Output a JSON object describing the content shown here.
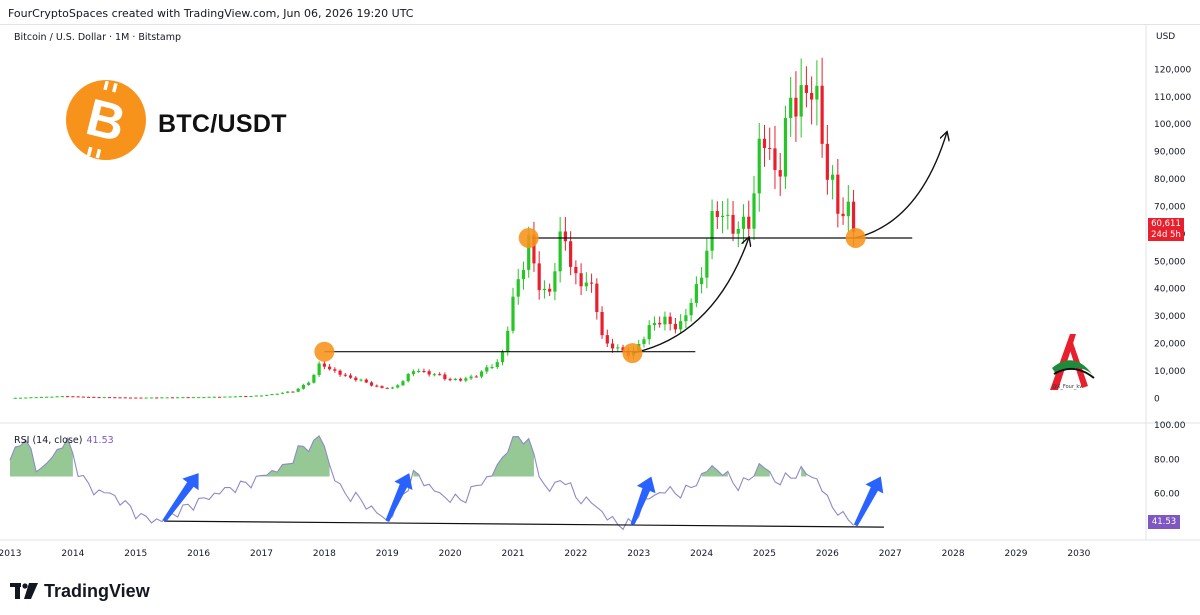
{
  "header": {
    "credit": "FourCryptoSpaces created with TradingView.com, Jun 06, 2026 19:20 UTC"
  },
  "symbol_line": "Bitcoin / U.S. Dollar · 1M · Bitstamp",
  "badge_title": "BTC/USDT",
  "price_tag": {
    "price": "60,611",
    "countdown": "24d 5h"
  },
  "rsi": {
    "label": "RSI (14, close)",
    "value": "41.53",
    "tag": "41.53"
  },
  "footer": {
    "brand": "TradingView"
  },
  "watermark": {
    "handle": "@X_Four_kv"
  },
  "colors": {
    "up": "#26c626",
    "down": "#e8202d",
    "rsi_line": "#8f89c9",
    "rsi_fill": "#3f9b3f",
    "orange": "#f7931a",
    "arrow_blue": "#2962ff"
  },
  "chart_data": [
    {
      "type": "candlestick",
      "title": "Bitcoin / U.S. Dollar · 1M · Bitstamp",
      "ylabel": "USD",
      "ylim": [
        -5000,
        130000
      ],
      "y_ticks": [
        0,
        10000,
        20000,
        30000,
        40000,
        50000,
        60000,
        70000,
        80000,
        90000,
        100000,
        110000,
        120000
      ],
      "y_tick_labels": [
        "0",
        "10,000",
        "20,000",
        "30,000",
        "40,000",
        "50,000",
        "60,000",
        "70,000",
        "80,000",
        "90,000",
        "100,000",
        "110,000",
        "120,000"
      ],
      "x_range": [
        2013.0,
        2030.4
      ],
      "x_ticks": [
        2013,
        2014,
        2015,
        2016,
        2017,
        2018,
        2019,
        2020,
        2021,
        2022,
        2023,
        2024,
        2025,
        2026,
        2027,
        2028,
        2029,
        2030
      ],
      "x_tick_labels": [
        "2013",
        "2014",
        "2015",
        "2016",
        "2017",
        "2018",
        "2019",
        "2020",
        "2021",
        "2022",
        "2023",
        "2024",
        "2025",
        "2026",
        "2027",
        "2028",
        "2029",
        "2030"
      ],
      "last_price": 60611,
      "ohlc_anchors": [
        [
          2013.0,
          100
        ],
        [
          2013.9,
          800
        ],
        [
          2014.2,
          500
        ],
        [
          2015.0,
          250
        ],
        [
          2016.0,
          430
        ],
        [
          2016.5,
          650
        ],
        [
          2017.0,
          1000
        ],
        [
          2017.5,
          2500
        ],
        [
          2017.8,
          6500
        ],
        [
          2017.95,
          14000
        ],
        [
          2018.1,
          10000
        ],
        [
          2018.5,
          7000
        ],
        [
          2018.9,
          3800
        ],
        [
          2019.1,
          3700
        ],
        [
          2019.45,
          10500
        ],
        [
          2019.7,
          9000
        ],
        [
          2019.95,
          7200
        ],
        [
          2020.2,
          6500
        ],
        [
          2020.5,
          9500
        ],
        [
          2020.8,
          13800
        ],
        [
          2020.95,
          29000
        ],
        [
          2021.1,
          45000
        ],
        [
          2021.25,
          58000
        ],
        [
          2021.45,
          36000
        ],
        [
          2021.6,
          42000
        ],
        [
          2021.8,
          61000
        ],
        [
          2021.95,
          46000
        ],
        [
          2022.3,
          38000
        ],
        [
          2022.45,
          19500
        ],
        [
          2022.8,
          17000
        ],
        [
          2022.95,
          16500
        ],
        [
          2023.2,
          28000
        ],
        [
          2023.7,
          27000
        ],
        [
          2023.95,
          42000
        ],
        [
          2024.15,
          62000
        ],
        [
          2024.3,
          70000
        ],
        [
          2024.6,
          59000
        ],
        [
          2024.8,
          70000
        ],
        [
          2024.95,
          96000
        ],
        [
          2025.2,
          82000
        ],
        [
          2025.4,
          104000
        ],
        [
          2025.6,
          114000
        ],
        [
          2025.8,
          110000
        ],
        [
          2025.95,
          91000
        ],
        [
          2026.1,
          76000
        ],
        [
          2026.2,
          62000
        ],
        [
          2026.3,
          72000
        ],
        [
          2026.45,
          60611
        ]
      ],
      "horizontal_levels": [
        {
          "price": 17000,
          "x_from": 2018.0,
          "x_to": 2023.9
        },
        {
          "price": 58500,
          "x_from": 2021.3,
          "x_to": 2027.35
        }
      ],
      "highlight_points": [
        {
          "x": 2018.0,
          "price": 17000
        },
        {
          "x": 2021.25,
          "price": 58500
        },
        {
          "x": 2022.9,
          "price": 16500
        },
        {
          "x": 2026.45,
          "price": 58500
        }
      ],
      "projection_arrows": [
        {
          "from": [
            2022.9,
            16500
          ],
          "to": [
            2024.75,
            58500
          ]
        },
        {
          "from": [
            2026.45,
            58500
          ],
          "to": [
            2027.9,
            97000
          ]
        }
      ]
    },
    {
      "type": "line",
      "title": "RSI (14, close)",
      "ylim": [
        40,
        100
      ],
      "y_ticks": [
        60,
        80,
        100
      ],
      "y_tick_labels": [
        "60.00",
        "80.00",
        "100.00"
      ],
      "last_value": 41.53,
      "rsi_anchors": [
        [
          2013.0,
          78
        ],
        [
          2013.15,
          92
        ],
        [
          2013.3,
          88
        ],
        [
          2013.45,
          72
        ],
        [
          2013.6,
          78
        ],
        [
          2013.9,
          92
        ],
        [
          2014.1,
          72
        ],
        [
          2014.3,
          62
        ],
        [
          2014.6,
          60
        ],
        [
          2014.9,
          52
        ],
        [
          2015.1,
          46
        ],
        [
          2015.4,
          44
        ],
        [
          2015.8,
          52
        ],
        [
          2016.1,
          57
        ],
        [
          2016.4,
          62
        ],
        [
          2016.8,
          66
        ],
        [
          2017.1,
          72
        ],
        [
          2017.4,
          76
        ],
        [
          2017.6,
          86
        ],
        [
          2017.8,
          88
        ],
        [
          2017.95,
          95
        ],
        [
          2018.1,
          74
        ],
        [
          2018.3,
          60
        ],
        [
          2018.5,
          58
        ],
        [
          2018.8,
          50
        ],
        [
          2019.0,
          44
        ],
        [
          2019.2,
          56
        ],
        [
          2019.45,
          73
        ],
        [
          2019.6,
          66
        ],
        [
          2019.9,
          58
        ],
        [
          2020.2,
          56
        ],
        [
          2020.4,
          64
        ],
        [
          2020.7,
          72
        ],
        [
          2020.9,
          86
        ],
        [
          2021.1,
          94
        ],
        [
          2021.3,
          88
        ],
        [
          2021.45,
          66
        ],
        [
          2021.6,
          62
        ],
        [
          2021.8,
          70
        ],
        [
          2022.0,
          58
        ],
        [
          2022.3,
          54
        ],
        [
          2022.5,
          46
        ],
        [
          2022.7,
          42
        ],
        [
          2022.9,
          42
        ],
        [
          2023.1,
          56
        ],
        [
          2023.4,
          62
        ],
        [
          2023.7,
          60
        ],
        [
          2023.9,
          66
        ],
        [
          2024.15,
          76
        ],
        [
          2024.35,
          72
        ],
        [
          2024.6,
          64
        ],
        [
          2024.8,
          70
        ],
        [
          2024.95,
          78
        ],
        [
          2025.2,
          66
        ],
        [
          2025.4,
          70
        ],
        [
          2025.6,
          73
        ],
        [
          2025.8,
          70
        ],
        [
          2025.95,
          60
        ],
        [
          2026.1,
          52
        ],
        [
          2026.25,
          46
        ],
        [
          2026.35,
          46
        ],
        [
          2026.45,
          41.53
        ]
      ],
      "trendline": {
        "from": [
          2015.45,
          44
        ],
        "to": [
          2026.9,
          40.5
        ]
      },
      "blue_arrows": [
        {
          "from": [
            2015.45,
            44
          ],
          "to": [
            2016.0,
            72
          ]
        },
        {
          "from": [
            2019.0,
            44
          ],
          "to": [
            2019.35,
            72
          ]
        },
        {
          "from": [
            2022.9,
            42
          ],
          "to": [
            2023.2,
            70
          ]
        },
        {
          "from": [
            2026.45,
            41.5
          ],
          "to": [
            2026.85,
            70
          ]
        }
      ]
    }
  ]
}
